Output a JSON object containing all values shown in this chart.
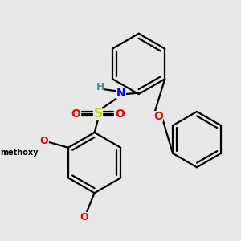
{
  "background_color": "#e8e8e8",
  "colors": {
    "C": "#000000",
    "H": "#4a9090",
    "N": "#0000ee",
    "O": "#ee0000",
    "S": "#cccc00"
  },
  "figsize": [
    3.0,
    3.0
  ],
  "dpi": 100
}
